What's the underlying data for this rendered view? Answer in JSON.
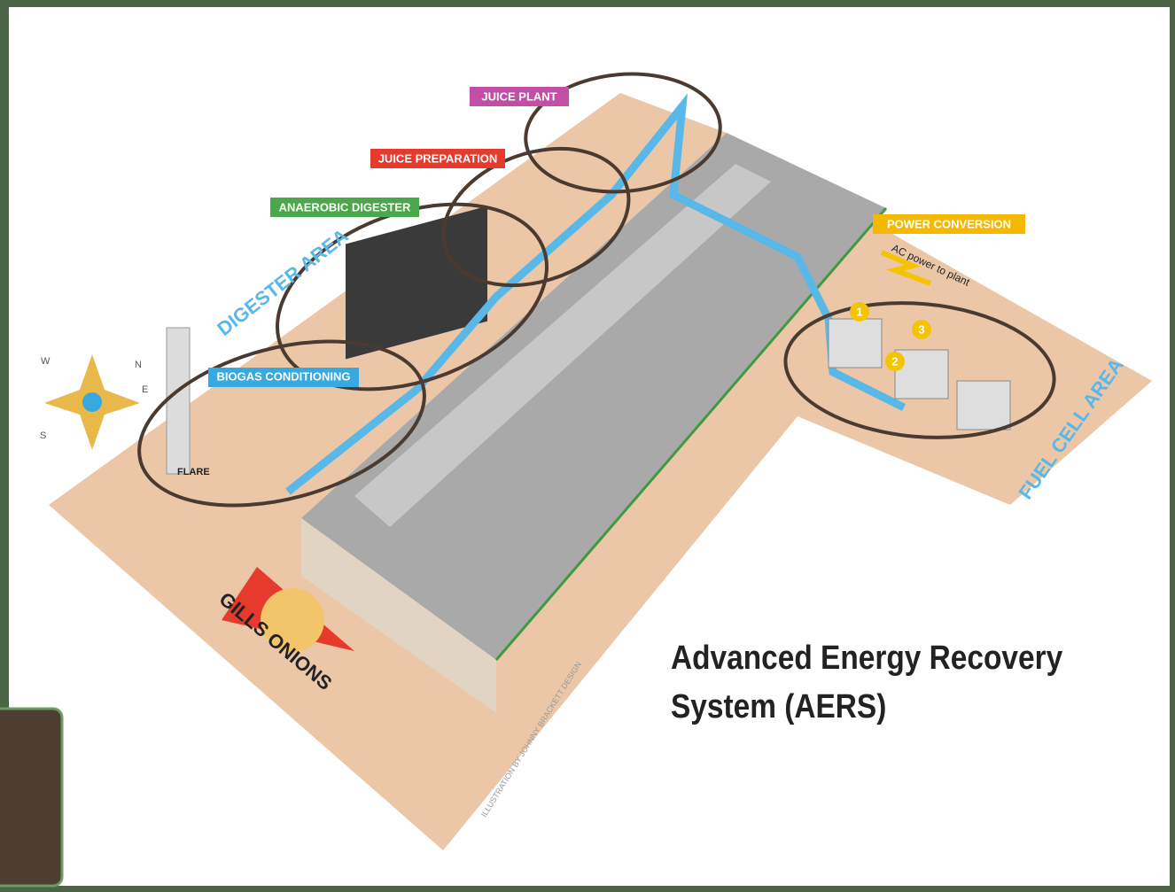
{
  "labels": {
    "juice_plant": "JUICE PLANT",
    "juice_preparation": "JUICE PREPARATION",
    "anaerobic_digester": "ANAEROBIC DIGESTER",
    "power_conversion": "POWER CONVERSION",
    "biogas_conditioning": "BIOGAS CONDITIONING",
    "ac_power": "AC power to plant",
    "digester_area": "DIGESTER AREA",
    "fuel_cell_area": "FUEL CELL AREA",
    "flare": "FLARE"
  },
  "fuel_cells": [
    "1",
    "2",
    "3"
  ],
  "compass": [
    "N",
    "E",
    "S",
    "W"
  ],
  "logo": "GILLS ONIONS",
  "credit": "ILLUSTRATION BY JOHNNY BRACKETT DESIGN",
  "title": [
    "Advanced Energy Recovery",
    "System (AERS)"
  ]
}
